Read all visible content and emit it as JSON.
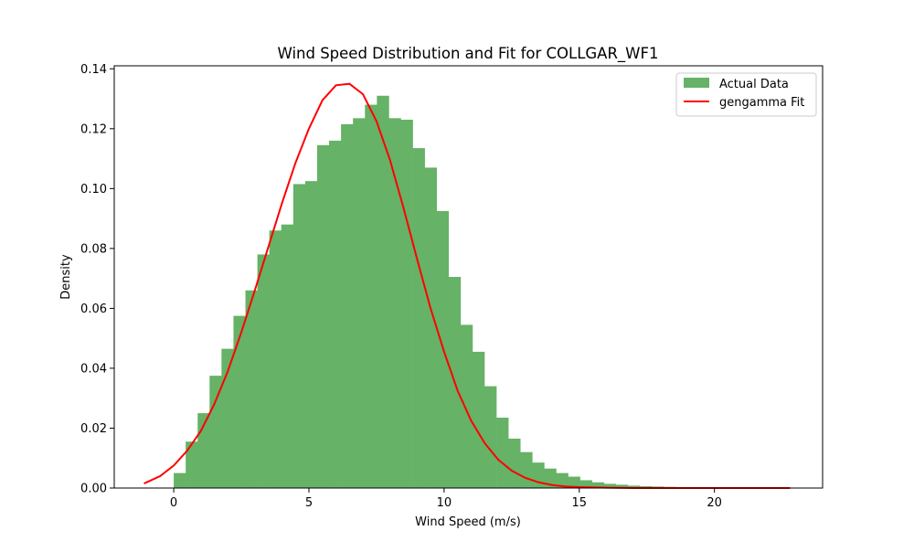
{
  "chart_data": {
    "type": "bar",
    "title": "Wind Speed Distribution and Fit for COLLGAR_WF1",
    "xlabel": "Wind Speed (m/s)",
    "ylabel": "Density",
    "xlim": [
      -2.2,
      24.0
    ],
    "ylim": [
      0,
      0.141
    ],
    "x_ticks": [
      0,
      5,
      10,
      15,
      20
    ],
    "x_tick_labels": [
      "0",
      "5",
      "10",
      "15",
      "20"
    ],
    "y_ticks": [
      0,
      0.02,
      0.04,
      0.06,
      0.08,
      0.1,
      0.12,
      0.14
    ],
    "y_tick_labels": [
      "0.00",
      "0.02",
      "0.04",
      "0.06",
      "0.08",
      "0.10",
      "0.12",
      "0.14"
    ],
    "grid": false,
    "legend_position": "top-right",
    "histogram": {
      "name": "Actual Data",
      "color": "#66b266",
      "bin_start": 0.0,
      "bin_width": 0.442,
      "densities": [
        0.005,
        0.0155,
        0.025,
        0.0375,
        0.0465,
        0.0575,
        0.066,
        0.078,
        0.086,
        0.088,
        0.1015,
        0.1025,
        0.1145,
        0.116,
        0.1215,
        0.1235,
        0.128,
        0.131,
        0.1235,
        0.123,
        0.1135,
        0.107,
        0.0925,
        0.0705,
        0.0545,
        0.0455,
        0.034,
        0.0235,
        0.0165,
        0.012,
        0.0085,
        0.0065,
        0.005,
        0.0038,
        0.0026,
        0.0019,
        0.0014,
        0.0011,
        0.0008,
        0.0006,
        0.0005,
        0.0004,
        0.0003,
        0.0003,
        0.0002,
        0.0002,
        0.0002,
        0.0001,
        0.0001,
        0.0001,
        0.0001
      ]
    },
    "series": [
      {
        "name": "gengamma Fit",
        "color": "#ff0000",
        "x": [
          -1.1,
          -0.5,
          0,
          0.5,
          1,
          1.5,
          2,
          2.5,
          3,
          3.5,
          4,
          4.5,
          5,
          5.5,
          6,
          6.5,
          7,
          7.5,
          8,
          8.5,
          9,
          9.5,
          10,
          10.5,
          11,
          11.5,
          12,
          12.5,
          13,
          13.5,
          14,
          14.5,
          15,
          16,
          17,
          18,
          19,
          20,
          21,
          22,
          22.8
        ],
        "y": [
          0.0015,
          0.004,
          0.0075,
          0.0125,
          0.019,
          0.028,
          0.039,
          0.052,
          0.066,
          0.0805,
          0.095,
          0.1085,
          0.12,
          0.1295,
          0.1345,
          0.135,
          0.1315,
          0.1225,
          0.1095,
          0.0935,
          0.0765,
          0.06,
          0.0455,
          0.0325,
          0.0225,
          0.015,
          0.0095,
          0.0058,
          0.0034,
          0.0019,
          0.001,
          0.0005,
          0.0003,
          0.0001,
          0.0,
          0.0,
          0.0,
          0.0,
          0.0,
          0.0,
          0.0
        ]
      }
    ]
  }
}
